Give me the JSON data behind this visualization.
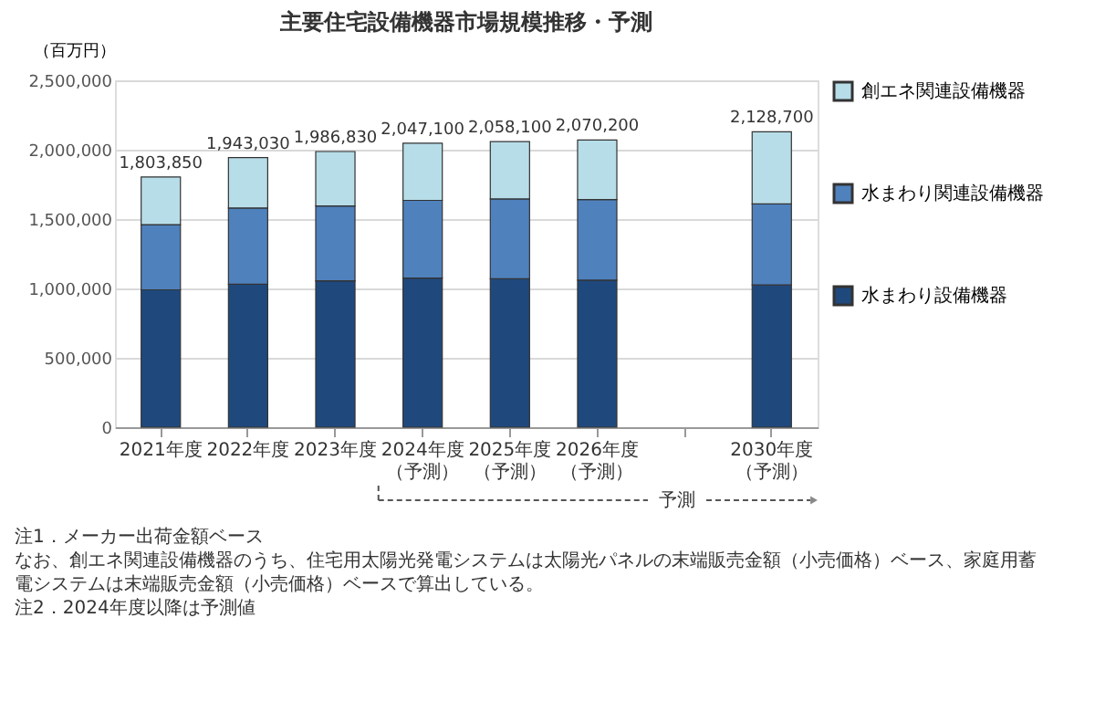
{
  "chart_data": {
    "type": "bar",
    "title": "主要住宅設備機器市場規模推移・予測",
    "ylabel": "（百万円）",
    "categories": [
      "2021年度",
      "2022年度",
      "2023年度",
      "2024年度（予測）",
      "2025年度（予測）",
      "2026年度（予測）",
      null,
      "2030年度（予測）"
    ],
    "stacked": true,
    "series": [
      {
        "name": "水まわり設備機器",
        "color": "#1f497d",
        "values": [
          990000,
          1030000,
          1055000,
          1075000,
          1070000,
          1060000,
          null,
          1025000
        ]
      },
      {
        "name": "水まわり関連設備機器",
        "color": "#4f81bd",
        "values": [
          470000,
          550000,
          540000,
          560000,
          575000,
          580000,
          null,
          585000
        ]
      },
      {
        "name": "創エネ関連設備機器",
        "color": "#b7dde8",
        "values": [
          343850,
          363030,
          391830,
          412100,
          413100,
          430200,
          null,
          518700
        ]
      }
    ],
    "totals": [
      "1,803,850",
      "1,943,030",
      "1,986,830",
      "2,047,100",
      "2,058,100",
      "2,070,200",
      null,
      "2,128,700"
    ],
    "ylim": [
      0,
      2500000
    ],
    "yticks": [
      0,
      {
        "value": 500000,
        "label": "500,000"
      },
      {
        "value": 1000000,
        "label": "1,000,000"
      },
      {
        "value": 1500000,
        "label": "1,500,000"
      },
      {
        "value": 2000000,
        "label": "2,000,000"
      },
      {
        "value": 2500000,
        "label": "2,500,000"
      }
    ],
    "grid": "y",
    "legend": "right",
    "annotations": [
      "予測",
      "注1．メーカー出荷金額ベース",
      "なお、創エネ関連設備機器のうち、住宅用太陽光発電システムは太陽光パネルの末端販売金額（小売価格）ベース、家庭用蓄電システムは末端販売金額（小売価格）ベースで算出している。",
      "注2．2024年度以降は予測値"
    ]
  }
}
